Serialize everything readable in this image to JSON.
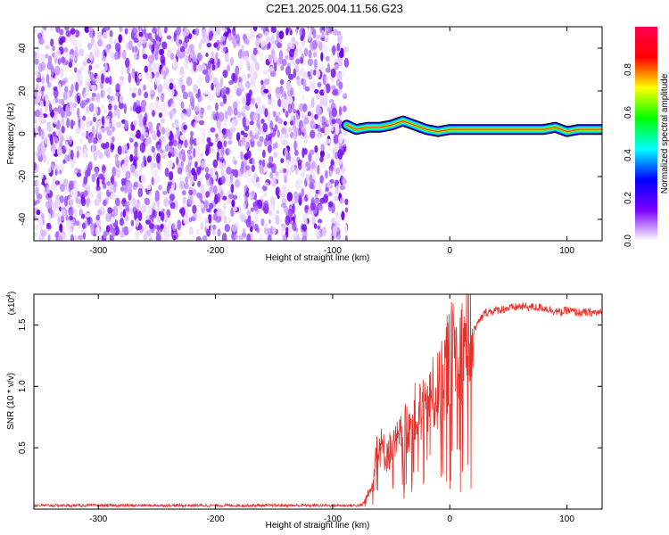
{
  "title": "C2E1.2025.004.11.56.G23",
  "chart_data": [
    {
      "type": "heatmap",
      "name": "spectrogram",
      "xlabel": "Height of straight line (km)",
      "ylabel": "Frequency (Hz)",
      "xlim": [
        -355,
        130
      ],
      "ylim": [
        -50,
        50
      ],
      "x_ticks": [
        -300,
        -200,
        -100,
        0,
        100
      ],
      "x_tick_labels": [
        "-300",
        "-200",
        "-100",
        "0",
        "100"
      ],
      "y_ticks": [
        -40,
        -20,
        0,
        20,
        40
      ],
      "y_tick_labels": [
        "-40",
        "-20",
        "0",
        "20",
        "40"
      ],
      "noise_region_x": [
        -355,
        -88
      ],
      "signal_region_x": [
        -88,
        130
      ],
      "signal_ridge": [
        {
          "x": -88,
          "y": 4
        },
        {
          "x": -80,
          "y": 2
        },
        {
          "x": -70,
          "y": 3
        },
        {
          "x": -60,
          "y": 3
        },
        {
          "x": -50,
          "y": 4
        },
        {
          "x": -40,
          "y": 6
        },
        {
          "x": -30,
          "y": 4
        },
        {
          "x": -20,
          "y": 2
        },
        {
          "x": -10,
          "y": 1
        },
        {
          "x": 0,
          "y": 2
        },
        {
          "x": 20,
          "y": 2
        },
        {
          "x": 40,
          "y": 2
        },
        {
          "x": 60,
          "y": 2
        },
        {
          "x": 80,
          "y": 2
        },
        {
          "x": 90,
          "y": 3
        },
        {
          "x": 100,
          "y": 1
        },
        {
          "x": 110,
          "y": 2
        },
        {
          "x": 130,
          "y": 2
        }
      ],
      "colorbar": {
        "label": "Normalized spectral amplitude",
        "ticks": [
          0.0,
          0.2,
          0.4,
          0.6,
          0.8
        ],
        "tick_labels": [
          "0.0",
          "0.2",
          "0.4",
          "0.6",
          "0.8"
        ],
        "range": [
          0,
          1
        ],
        "colors": [
          "#ffffff",
          "#7b00ff",
          "#0000ff",
          "#00ffff",
          "#00ff00",
          "#ffff00",
          "#ff0000",
          "#ff0050"
        ]
      }
    },
    {
      "type": "line",
      "name": "snr",
      "xlabel": "Height of straight line (km)",
      "ylabel": "SNR (10 * v/v)",
      "scale_label": "(x10",
      "scale_exponent": "4",
      "scale_suffix": ")",
      "xlim": [
        -355,
        130
      ],
      "ylim": [
        0.0,
        1.75
      ],
      "x_ticks": [
        -300,
        -200,
        -100,
        0,
        100
      ],
      "x_tick_labels": [
        "-300",
        "-200",
        "-100",
        "0",
        "100"
      ],
      "y_ticks": [
        0.5,
        1.0,
        1.5
      ],
      "y_tick_labels": [
        "0.5",
        "1.0",
        "1.5"
      ],
      "color": "#e8302a",
      "envelope": [
        {
          "x": -355,
          "y": 0.03
        },
        {
          "x": -250,
          "y": 0.03
        },
        {
          "x": -150,
          "y": 0.03
        },
        {
          "x": -75,
          "y": 0.03
        },
        {
          "x": -68,
          "y": 0.15
        },
        {
          "x": -62,
          "y": 0.55
        },
        {
          "x": -55,
          "y": 0.45
        },
        {
          "x": -48,
          "y": 0.5
        },
        {
          "x": -40,
          "y": 0.6
        },
        {
          "x": -32,
          "y": 0.75
        },
        {
          "x": -25,
          "y": 0.8
        },
        {
          "x": -18,
          "y": 0.9
        },
        {
          "x": -10,
          "y": 0.95
        },
        {
          "x": -5,
          "y": 1.1
        },
        {
          "x": 0,
          "y": 1.25
        },
        {
          "x": 10,
          "y": 1.3
        },
        {
          "x": 20,
          "y": 1.45
        },
        {
          "x": 30,
          "y": 1.6
        },
        {
          "x": 40,
          "y": 1.62
        },
        {
          "x": 60,
          "y": 1.65
        },
        {
          "x": 80,
          "y": 1.64
        },
        {
          "x": 95,
          "y": 1.6
        },
        {
          "x": 100,
          "y": 1.62
        },
        {
          "x": 110,
          "y": 1.6
        },
        {
          "x": 130,
          "y": 1.6
        }
      ]
    }
  ]
}
